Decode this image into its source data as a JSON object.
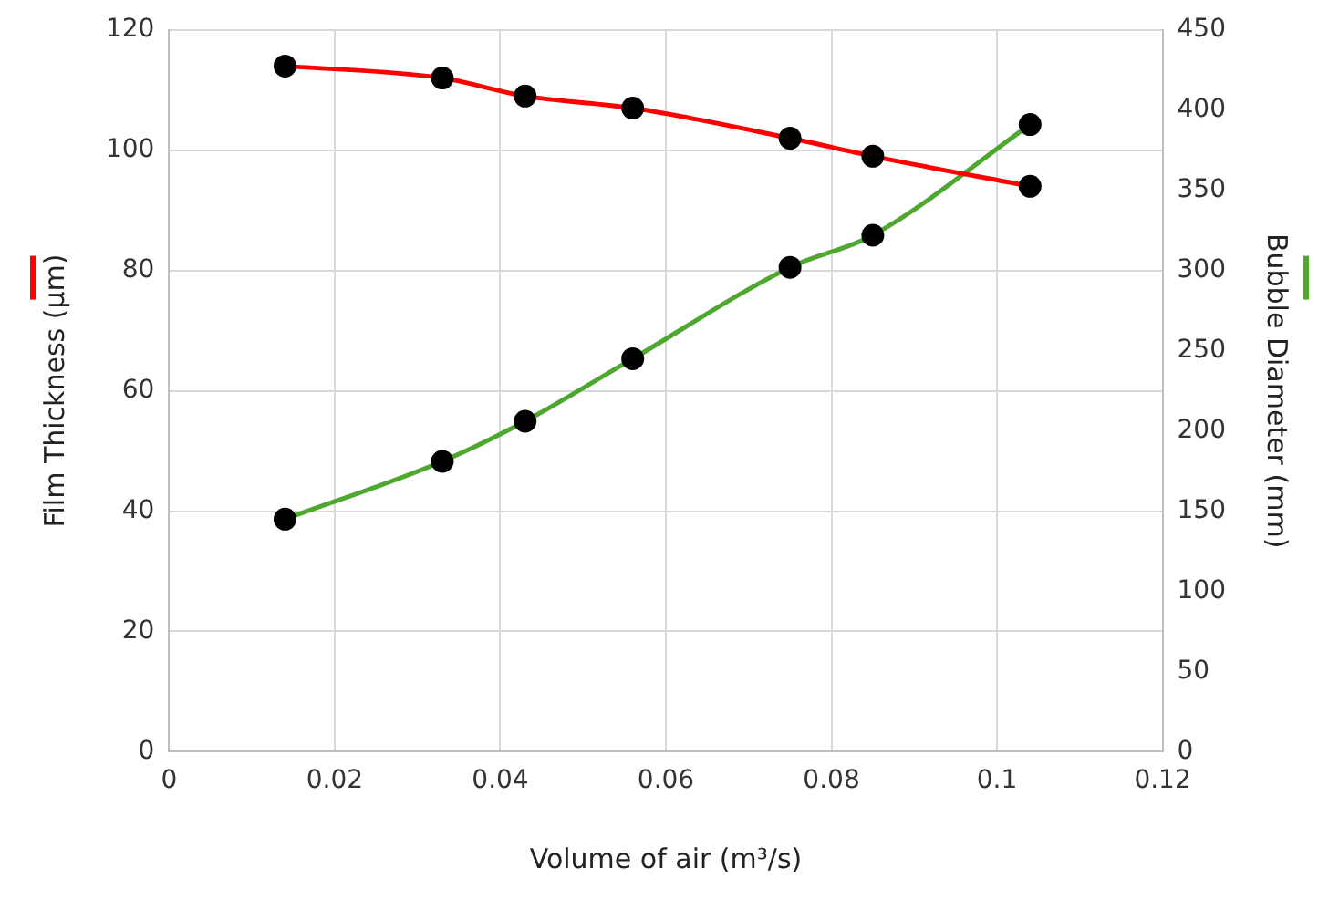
{
  "chart_data": {
    "type": "line",
    "xlabel": "Volume of air (m³/s)",
    "ylabel": "Film Thickness (µm)",
    "y2label": "Bubble Diameter (mm)",
    "x": [
      0.014,
      0.033,
      0.043,
      0.056,
      0.075,
      0.085,
      0.104
    ],
    "series": [
      {
        "color": "#ff0000",
        "values": [
          114,
          112,
          109,
          107,
          102,
          99,
          94
        ]
      },
      {
        "color": "#4ea72e",
        "axis": "y2",
        "values": [
          145,
          181,
          206,
          245,
          302,
          322,
          391
        ]
      }
    ],
    "xlim": [
      0,
      0.12
    ],
    "xticks": [
      0,
      0.02,
      0.04,
      0.06,
      0.08,
      0.1,
      0.12
    ],
    "ylim": [
      0,
      120
    ],
    "yticks": [
      0,
      20,
      40,
      60,
      80,
      100,
      120
    ],
    "y2lim": [
      0,
      450
    ],
    "y2ticks": [
      0,
      50,
      100,
      150,
      200,
      250,
      300,
      350,
      400,
      450
    ],
    "grid": true,
    "legend": false,
    "marker": "circle",
    "line_style": "solid"
  }
}
